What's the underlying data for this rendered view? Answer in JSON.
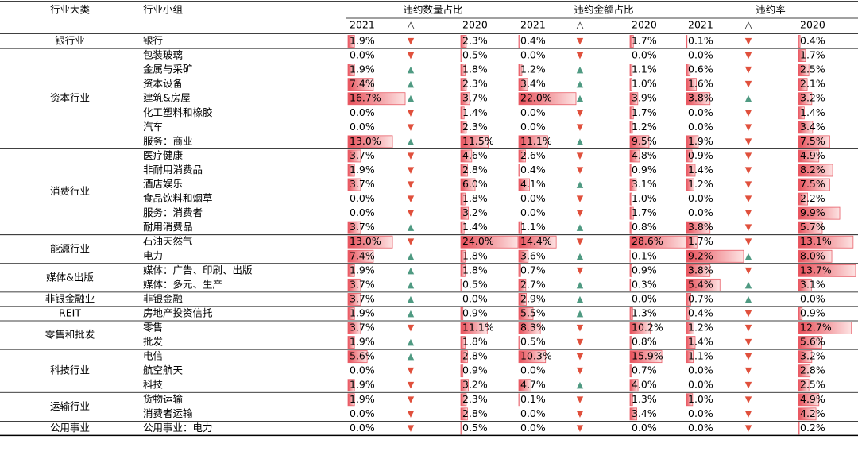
{
  "header": {
    "category": "行业大类",
    "group": "行业小组",
    "metrics": [
      "违约数量占比",
      "违约金额占比",
      "违约率"
    ],
    "sub": [
      "2021",
      "△",
      "2020"
    ]
  },
  "groups": [
    {
      "name": "银行业",
      "rows": [
        {
          "name": "银行",
          "cells": [
            "1.9%",
            "▼",
            "2.3%",
            "0.4%",
            "▼",
            "1.7%",
            "0.1%",
            "▼",
            "0.4%"
          ]
        }
      ]
    },
    {
      "name": "资本行业",
      "rows": [
        {
          "name": "包装玻璃",
          "cells": [
            "0.0%",
            "▼",
            "0.5%",
            "0.0%",
            "▼",
            "0.0%",
            "0.0%",
            "▼",
            "1.7%"
          ]
        },
        {
          "name": "金属与采矿",
          "cells": [
            "1.9%",
            "▲",
            "1.8%",
            "1.2%",
            "▲",
            "1.1%",
            "0.6%",
            "▼",
            "2.5%"
          ]
        },
        {
          "name": "资本设备",
          "cells": [
            "7.4%",
            "▲",
            "2.3%",
            "3.4%",
            "▲",
            "1.0%",
            "1.6%",
            "▼",
            "2.1%"
          ]
        },
        {
          "name": "建筑&房屋",
          "cells": [
            "16.7%",
            "▲",
            "3.7%",
            "22.0%",
            "▲",
            "3.9%",
            "3.8%",
            "▲",
            "3.2%"
          ]
        },
        {
          "name": "化工塑料和橡胶",
          "cells": [
            "0.0%",
            "▼",
            "1.4%",
            "0.0%",
            "▼",
            "1.7%",
            "0.0%",
            "▼",
            "1.4%"
          ]
        },
        {
          "name": "汽车",
          "cells": [
            "0.0%",
            "▼",
            "2.3%",
            "0.0%",
            "▼",
            "1.2%",
            "0.0%",
            "▼",
            "3.4%"
          ]
        },
        {
          "name": "服务：商业",
          "cells": [
            "13.0%",
            "▲",
            "11.5%",
            "11.1%",
            "▲",
            "9.5%",
            "1.9%",
            "▼",
            "7.5%"
          ]
        }
      ]
    },
    {
      "name": "消费行业",
      "rows": [
        {
          "name": "医疗健康",
          "cells": [
            "3.7%",
            "▼",
            "4.6%",
            "2.6%",
            "▼",
            "4.8%",
            "0.9%",
            "▼",
            "4.9%"
          ]
        },
        {
          "name": "非耐用消费品",
          "cells": [
            "1.9%",
            "▼",
            "2.8%",
            "0.4%",
            "▼",
            "0.9%",
            "1.4%",
            "▼",
            "8.2%"
          ]
        },
        {
          "name": "酒店娱乐",
          "cells": [
            "3.7%",
            "▼",
            "6.0%",
            "4.1%",
            "▲",
            "3.1%",
            "1.2%",
            "▼",
            "7.5%"
          ]
        },
        {
          "name": "食品饮料和烟草",
          "cells": [
            "0.0%",
            "▼",
            "1.8%",
            "0.0%",
            "▼",
            "1.0%",
            "0.0%",
            "▼",
            "2.2%"
          ]
        },
        {
          "name": "服务：消费者",
          "cells": [
            "0.0%",
            "▼",
            "3.2%",
            "0.0%",
            "▼",
            "1.7%",
            "0.0%",
            "▼",
            "9.9%"
          ]
        },
        {
          "name": "耐用消费品",
          "cells": [
            "3.7%",
            "▲",
            "1.4%",
            "1.1%",
            "▲",
            "0.8%",
            "3.8%",
            "▼",
            "5.7%"
          ]
        }
      ]
    },
    {
      "name": "能源行业",
      "rows": [
        {
          "name": "石油天然气",
          "cells": [
            "13.0%",
            "▼",
            "24.0%",
            "14.4%",
            "▼",
            "28.6%",
            "1.7%",
            "▼",
            "13.1%"
          ]
        },
        {
          "name": "电力",
          "cells": [
            "7.4%",
            "▲",
            "1.8%",
            "3.6%",
            "▲",
            "0.1%",
            "9.2%",
            "▲",
            "8.0%"
          ]
        }
      ]
    },
    {
      "name": "媒体&出版",
      "rows": [
        {
          "name": "媒体：广告、印刷、出版",
          "cells": [
            "1.9%",
            "▲",
            "1.8%",
            "0.7%",
            "▼",
            "0.9%",
            "3.8%",
            "▼",
            "13.7%"
          ]
        },
        {
          "name": "媒体：多元、生产",
          "cells": [
            "3.7%",
            "▲",
            "0.5%",
            "2.7%",
            "▲",
            "0.3%",
            "5.4%",
            "▲",
            "3.1%"
          ]
        }
      ]
    },
    {
      "name": "非银金融业",
      "rows": [
        {
          "name": "非银金融",
          "cells": [
            "3.7%",
            "▲",
            "0.0%",
            "2.9%",
            "▲",
            "0.0%",
            "0.7%",
            "▲",
            "0.0%"
          ]
        }
      ]
    },
    {
      "name": "REIT",
      "rows": [
        {
          "name": "房地产投资信托",
          "cells": [
            "1.9%",
            "▲",
            "0.9%",
            "5.5%",
            "▲",
            "1.3%",
            "0.4%",
            "▼",
            "0.9%"
          ]
        }
      ]
    },
    {
      "name": "零售和批发",
      "rows": [
        {
          "name": "零售",
          "cells": [
            "3.7%",
            "▼",
            "11.1%",
            "8.3%",
            "▼",
            "10.2%",
            "1.2%",
            "▼",
            "12.7%"
          ]
        },
        {
          "name": "批发",
          "cells": [
            "1.9%",
            "▲",
            "1.8%",
            "0.5%",
            "▼",
            "0.8%",
            "1.4%",
            "▼",
            "5.6%"
          ]
        }
      ]
    },
    {
      "name": "科技行业",
      "rows": [
        {
          "name": "电信",
          "cells": [
            "5.6%",
            "▲",
            "2.8%",
            "10.3%",
            "▼",
            "15.9%",
            "1.1%",
            "▼",
            "3.2%"
          ]
        },
        {
          "name": "航空航天",
          "cells": [
            "0.0%",
            "▼",
            "0.9%",
            "0.0%",
            "▼",
            "0.7%",
            "0.0%",
            "▼",
            "2.8%"
          ]
        },
        {
          "name": "科技",
          "cells": [
            "1.9%",
            "▼",
            "3.2%",
            "4.7%",
            "▲",
            "4.0%",
            "0.0%",
            "▼",
            "2.5%"
          ]
        }
      ]
    },
    {
      "name": "运输行业",
      "rows": [
        {
          "name": "货物运输",
          "cells": [
            "1.9%",
            "▼",
            "2.3%",
            "0.1%",
            "▼",
            "1.3%",
            "1.0%",
            "▼",
            "4.9%"
          ]
        },
        {
          "name": "消费者运输",
          "cells": [
            "0.0%",
            "▼",
            "2.8%",
            "0.0%",
            "▼",
            "3.4%",
            "0.0%",
            "▼",
            "4.2%"
          ]
        }
      ]
    },
    {
      "name": "公用事业",
      "rows": [
        {
          "name": "公用事业：电力",
          "cells": [
            "0.0%",
            "▼",
            "0.5%",
            "0.0%",
            "▼",
            "0.0%",
            "0.0%",
            "▼",
            "0.2%"
          ]
        }
      ]
    }
  ]
}
